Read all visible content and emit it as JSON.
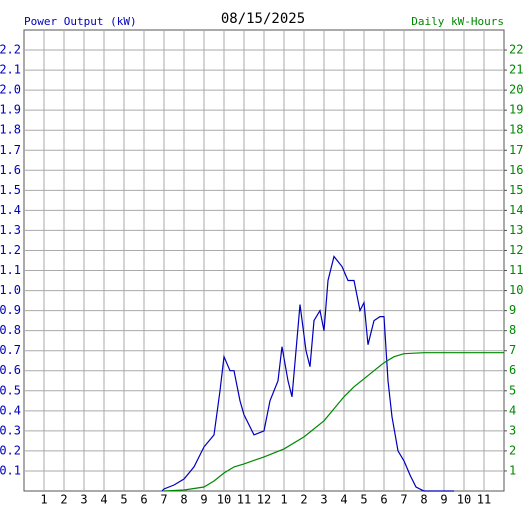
{
  "chart_data": {
    "type": "line",
    "title": "08/15/2025",
    "ylabel": "Power Output (kW)",
    "y2label": "Daily kW-Hours",
    "xlim": [
      0,
      24
    ],
    "xticks": [
      1,
      2,
      3,
      4,
      5,
      6,
      7,
      8,
      9,
      10,
      11,
      12,
      {
        "value": 13,
        "label": "1"
      },
      {
        "value": 14,
        "label": "2"
      },
      {
        "value": 15,
        "label": "3"
      },
      {
        "value": 16,
        "label": "4"
      },
      {
        "value": 17,
        "label": "5"
      },
      {
        "value": 18,
        "label": "6"
      },
      {
        "value": 19,
        "label": "7"
      },
      {
        "value": 20,
        "label": "8"
      },
      {
        "value": 21,
        "label": "9"
      },
      {
        "value": 22,
        "label": "10"
      },
      {
        "value": 23,
        "label": "11"
      }
    ],
    "ylim": [
      0,
      2.3
    ],
    "yticks": [
      0.1,
      0.2,
      0.3,
      0.4,
      0.5,
      0.6,
      0.7,
      0.8,
      0.9,
      {
        "value": 1,
        "label": "1.0"
      },
      1.1,
      1.2,
      1.3,
      1.4,
      1.5,
      1.6,
      1.7,
      1.8,
      1.9,
      {
        "value": 2,
        "label": "2.0"
      },
      2.1,
      2.2
    ],
    "y2lim": [
      0,
      23
    ],
    "y2ticks": [
      1,
      2,
      3,
      4,
      5,
      6,
      7,
      8,
      9,
      10,
      11,
      12,
      13,
      14,
      15,
      16,
      17,
      18,
      19,
      20,
      21,
      22
    ],
    "grid": true,
    "series": [
      {
        "color": "#0000bb",
        "x": [
          6.9,
          7,
          7.5,
          8,
          8.5,
          9,
          9.5,
          9.8,
          10,
          10.3,
          10.5,
          10.8,
          11,
          11.5,
          12,
          12.3,
          12.7,
          12.9,
          13.2,
          13.4,
          13.6,
          13.8,
          14.1,
          14.3,
          14.5,
          14.8,
          15,
          15.2,
          15.5,
          15.9,
          16.2,
          16.5,
          16.8,
          17,
          17.2,
          17.5,
          17.8,
          18,
          18.2,
          18.4,
          18.7,
          19,
          19.3,
          19.6,
          20,
          21.5
        ],
        "values": [
          0,
          0.01,
          0.03,
          0.06,
          0.12,
          0.22,
          0.28,
          0.5,
          0.67,
          0.6,
          0.6,
          0.45,
          0.38,
          0.28,
          0.3,
          0.45,
          0.55,
          0.72,
          0.55,
          0.47,
          0.7,
          0.93,
          0.7,
          0.62,
          0.85,
          0.9,
          0.8,
          1.05,
          1.17,
          1.12,
          1.05,
          1.05,
          0.9,
          0.94,
          0.73,
          0.85,
          0.87,
          0.87,
          0.55,
          0.37,
          0.2,
          0.15,
          0.08,
          0.02,
          0,
          0
        ]
      },
      {
        "color": "#008800",
        "axis": "y2",
        "x": [
          7,
          8,
          9,
          9.5,
          10,
          10.5,
          11,
          12,
          13,
          14,
          15,
          15.5,
          16,
          16.5,
          17,
          17.5,
          18,
          18.5,
          19,
          20,
          24
        ],
        "values": [
          0,
          0.05,
          0.2,
          0.5,
          0.9,
          1.2,
          1.35,
          1.7,
          2.1,
          2.7,
          3.5,
          4.1,
          4.7,
          5.2,
          5.6,
          6.0,
          6.4,
          6.7,
          6.85,
          6.9,
          6.9
        ]
      }
    ]
  }
}
